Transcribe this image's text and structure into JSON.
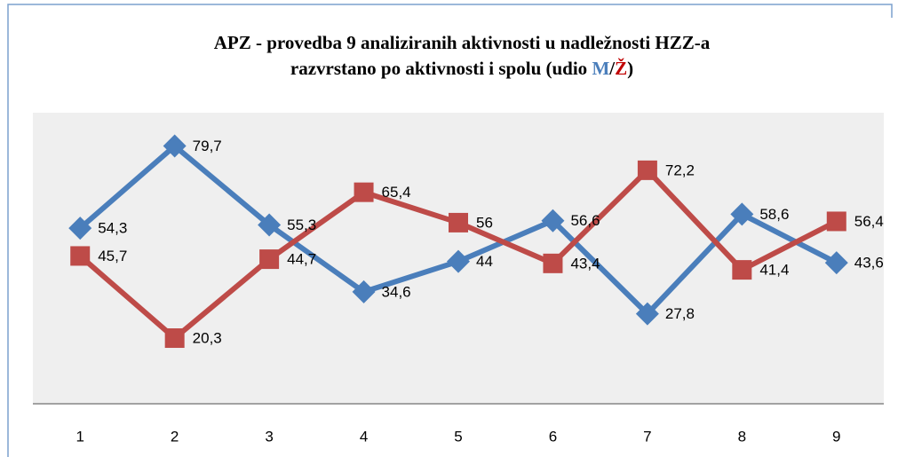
{
  "chart_data": {
    "type": "line",
    "title": [
      "APZ - provedba 9 analiziranih aktivnosti  u nadležnosti HZZ-a",
      "razvrstano po aktivnosti i spolu (udio ",
      "/",
      ")"
    ],
    "categories": [
      "1",
      "2",
      "3",
      "4",
      "5",
      "6",
      "7",
      "8",
      "9"
    ],
    "series": [
      {
        "name": "M",
        "color": "#4a7ebb",
        "marker": "diamond",
        "values": [
          54.3,
          79.7,
          55.3,
          34.6,
          44,
          56.6,
          27.8,
          58.6,
          43.6
        ],
        "value_labels": [
          "54,3",
          "79,7",
          "55,3",
          "34,6",
          "44",
          "56,6",
          "27,8",
          "58,6",
          "43,6"
        ]
      },
      {
        "name": "Ž",
        "color": "#be4b48",
        "marker": "square",
        "values": [
          45.7,
          20.3,
          44.7,
          65.4,
          56,
          43.4,
          72.2,
          41.4,
          56.4
        ],
        "value_labels": [
          "45,7",
          "20,3",
          "44,7",
          "65,4",
          "56",
          "43,4",
          "72,2",
          "41,4",
          "56,4"
        ]
      }
    ],
    "ylim": [
      0,
      90
    ]
  }
}
